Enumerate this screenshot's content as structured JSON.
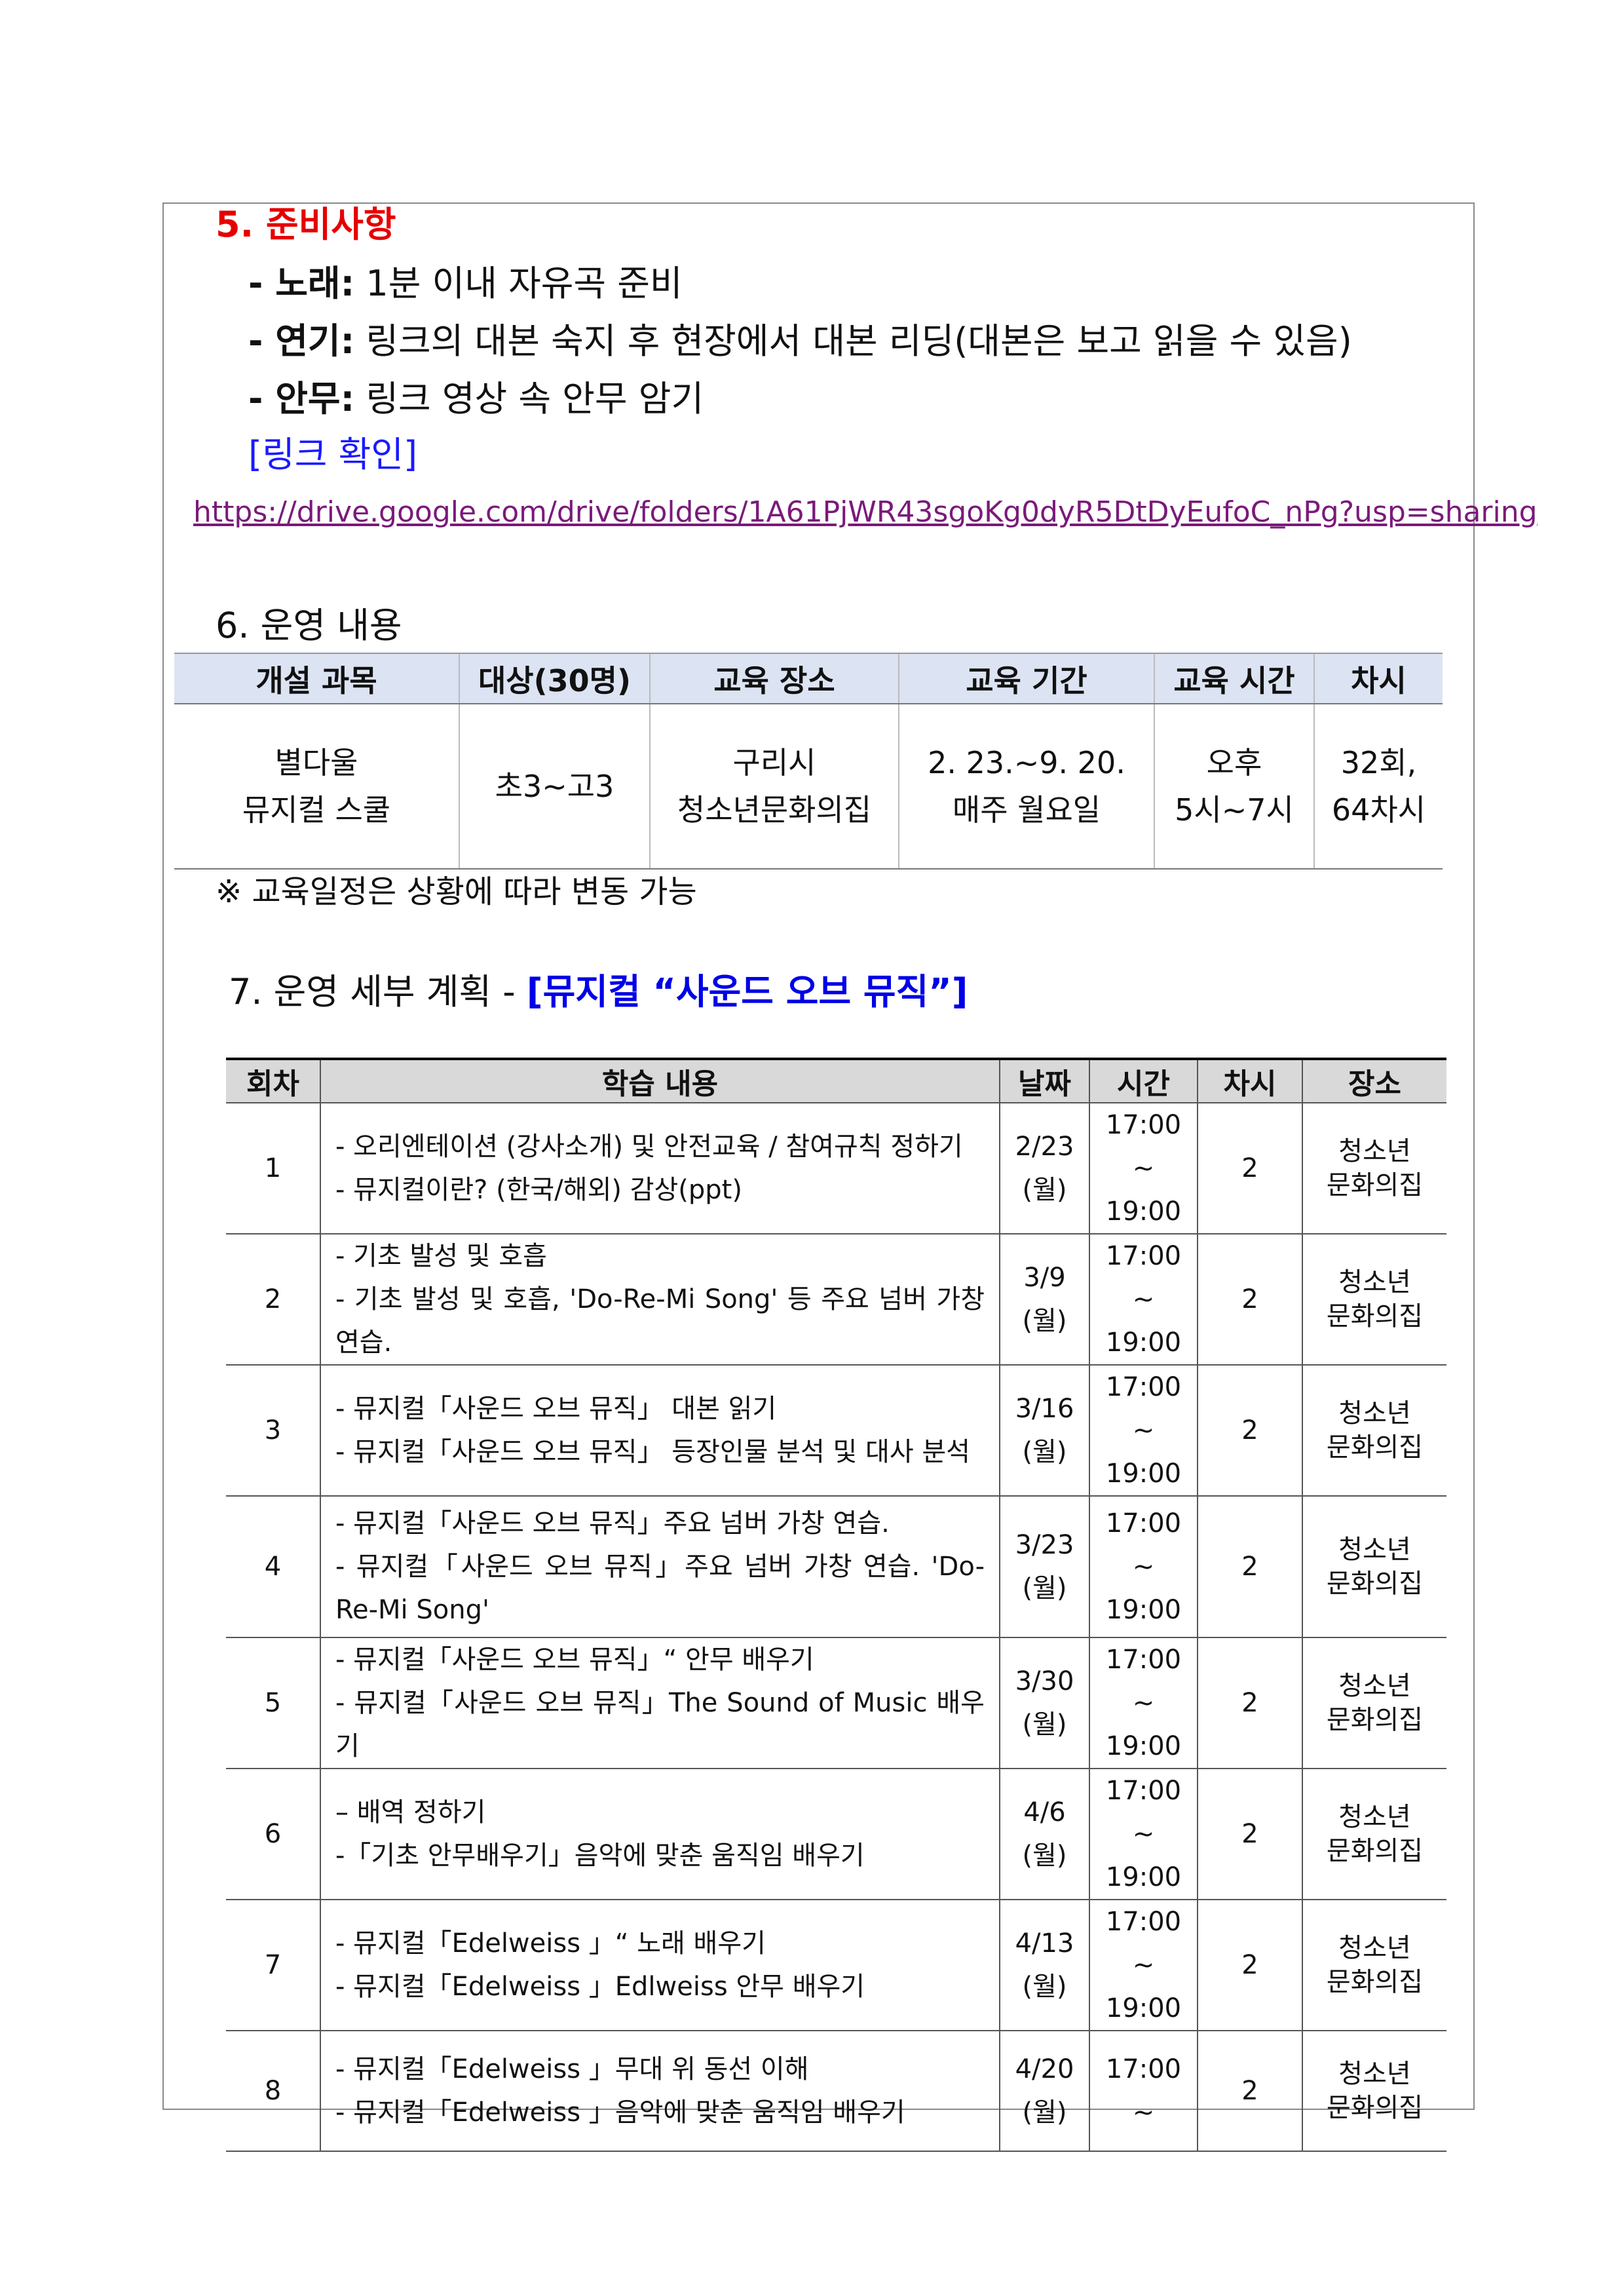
{
  "prep": {
    "heading": "5. 준비사항",
    "items": [
      {
        "label": "- 노래:",
        "text": "1분 이내 자유곡 준비"
      },
      {
        "label": "- 연기:",
        "text": "링크의 대본 숙지 후 현장에서 대본 리딩(대본은 보고 읽을 수 있음)"
      },
      {
        "label": "- 안무:",
        "text": "링크 영상 속 안무 암기"
      }
    ],
    "link_label": "[링크 확인]",
    "link_url": "https://drive.google.com/drive/folders/1A61PjWR43sgoKg0dyR5DtDyEufoC_nPg?usp=sharing"
  },
  "operation": {
    "heading": "6. 운영 내용",
    "headers": [
      "개설 과목",
      "대상(30명)",
      "교육 장소",
      "교육 기간",
      "교육 시간",
      "차시"
    ],
    "row": [
      [
        "별다울",
        "뮤지컬 스쿨"
      ],
      [
        "초3~고3"
      ],
      [
        "구리시",
        "청소년문화의집"
      ],
      [
        "2. 23.~9. 20.",
        "매주 월요일"
      ],
      [
        "오후",
        "5시~7시"
      ],
      [
        "32회,",
        "64차시"
      ]
    ],
    "note": "※ 교육일정은 상황에 따라 변동 가능"
  },
  "plan": {
    "heading": "7. 운영 세부 계획 -",
    "heading_highlight": "[뮤지컬 “사운드 오브 뮤직”]",
    "headers": [
      "회차",
      "학습 내용",
      "날짜",
      "시간",
      "차시",
      "장소"
    ],
    "rows": [
      {
        "no": "1",
        "content": [
          "- 오리엔테이션 (강사소개) 및 안전교육 / 참여규칙 정하기",
          "- 뮤지컬이란? (한국/해외) 감상(ppt)"
        ],
        "date": [
          "2/23",
          "(월)"
        ],
        "time": [
          "17:00",
          "~",
          "19:00"
        ],
        "count": "2",
        "place": [
          "청소년",
          "문화의집"
        ]
      },
      {
        "no": "2",
        "content": [
          "- 기초 발성 및 호흡",
          "- 기초 발성 및 호흡, 'Do-Re-Mi Song' 등 주요 넘버 가창 연습."
        ],
        "date": [
          "3/9",
          "(월)"
        ],
        "time": [
          "17:00",
          "~",
          "19:00"
        ],
        "count": "2",
        "place": [
          "청소년",
          "문화의집"
        ]
      },
      {
        "no": "3",
        "content": [
          "- 뮤지컬「사운드 오브 뮤직」 대본 읽기",
          "- 뮤지컬「사운드 오브 뮤직」 등장인물 분석 및 대사 분석"
        ],
        "date": [
          "3/16",
          "(월)"
        ],
        "time": [
          "17:00",
          "~",
          "19:00"
        ],
        "count": "2",
        "place": [
          "청소년",
          "문화의집"
        ]
      },
      {
        "no": "4",
        "content": [
          "- 뮤지컬「사운드 오브 뮤직」주요 넘버 가창 연습.",
          "- 뮤지컬「사운드 오브 뮤직」주요 넘버 가창 연습. 'Do-Re-Mi Song'"
        ],
        "date": [
          "3/23",
          "(월)"
        ],
        "time": [
          "17:00",
          "~",
          "19:00"
        ],
        "count": "2",
        "place": [
          "청소년",
          "문화의집"
        ]
      },
      {
        "no": "5",
        "content": [
          "- 뮤지컬「사운드 오브 뮤직」“ 안무 배우기",
          "- 뮤지컬「사운드 오브 뮤직」The Sound of Music 배우기"
        ],
        "date": [
          "3/30",
          "(월)"
        ],
        "time": [
          "17:00",
          "~",
          "19:00"
        ],
        "count": "2",
        "place": [
          "청소년",
          "문화의집"
        ]
      },
      {
        "no": "6",
        "content": [
          "– 배역 정하기",
          "-「기초 안무배우기」음악에 맞춘 움직임 배우기"
        ],
        "date": [
          "4/6",
          "(월)"
        ],
        "time": [
          "17:00",
          "~",
          "19:00"
        ],
        "count": "2",
        "place": [
          "청소년",
          "문화의집"
        ]
      },
      {
        "no": "7",
        "content": [
          "- 뮤지컬「Edelweiss 」“ 노래 배우기",
          "- 뮤지컬「Edelweiss 」Edlweiss 안무 배우기"
        ],
        "date": [
          "4/13",
          "(월)"
        ],
        "time": [
          "17:00",
          "~",
          "19:00"
        ],
        "count": "2",
        "place": [
          "청소년",
          "문화의집"
        ]
      },
      {
        "no": "8",
        "content": [
          "- 뮤지컬「Edelweiss 」무대 위 동선 이해",
          "- 뮤지컬「Edelweiss 」음악에 맞춘 움직임 배우기"
        ],
        "date": [
          "4/20",
          "(월)"
        ],
        "time": [
          "17:00",
          "~"
        ],
        "count": "2",
        "place": [
          "청소년",
          "문화의집"
        ]
      }
    ]
  }
}
